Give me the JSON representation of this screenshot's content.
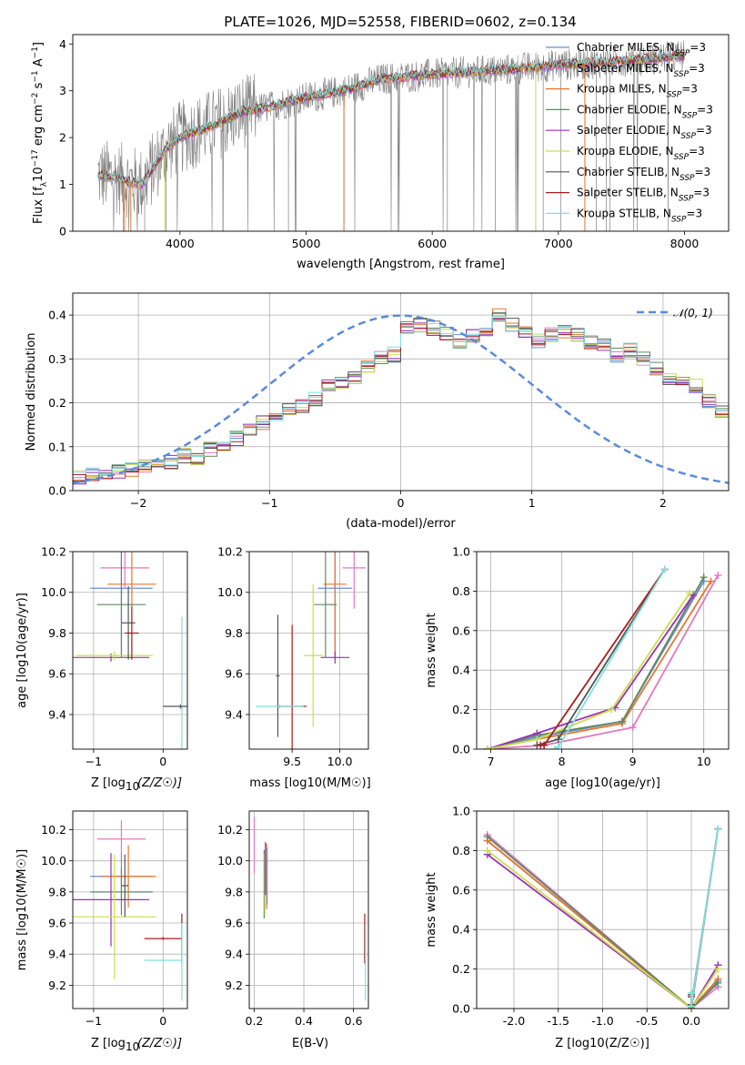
{
  "figure_title": "PLATE=1026, MJD=52558, FIBERID=0602, z=0.134",
  "colors": {
    "Chabrier MILES": "#6b8ed6",
    "Salpeter MILES": "#e377c2",
    "Kroupa MILES": "#e6772e",
    "Chabrier ELODIE": "#5f8a5f",
    "Salpeter ELODIE": "#9b30b8",
    "Kroupa ELODIE": "#c8e04a",
    "Chabrier STELIB": "#555555",
    "Salpeter STELIB": "#a81c1c",
    "Kroupa STELIB": "#7fe0e0"
  },
  "legend_entries": [
    {
      "name": "Chabrier MILES",
      "label": "Chabrier MILES, N",
      "sub": "SSP",
      "tail": "=3"
    },
    {
      "name": "Salpeter MILES",
      "label": "Salpeter MILES, N",
      "sub": "SSP",
      "tail": "=3"
    },
    {
      "name": "Kroupa MILES",
      "label": "Kroupa MILES, N",
      "sub": "SSP",
      "tail": "=3"
    },
    {
      "name": "Chabrier ELODIE",
      "label": "Chabrier ELODIE, N",
      "sub": "SSP",
      "tail": "=3"
    },
    {
      "name": "Salpeter ELODIE",
      "label": "Salpeter ELODIE, N",
      "sub": "SSP",
      "tail": "=3"
    },
    {
      "name": "Kroupa ELODIE",
      "label": "Kroupa ELODIE, N",
      "sub": "SSP",
      "tail": "=3"
    },
    {
      "name": "Chabrier STELIB",
      "label": "Chabrier STELIB, N",
      "sub": "SSP",
      "tail": "=3"
    },
    {
      "name": "Salpeter STELIB",
      "label": "Salpeter STELIB, N",
      "sub": "SSP",
      "tail": "=3"
    },
    {
      "name": "Kroupa STELIB",
      "label": "Kroupa STELIB, N",
      "sub": "SSP",
      "tail": "=3"
    }
  ],
  "chart_data": [
    {
      "id": "spectrum",
      "type": "line",
      "xlabel": "wavelength [Angstrom, rest frame]",
      "ylabel": "Flux [fλ 10−17 erg cm−2 s−1 A−1]",
      "xlim": [
        3150,
        8350
      ],
      "ylim": [
        0,
        4.2
      ],
      "xticks": [
        4000,
        5000,
        6000,
        7000,
        8000
      ],
      "yticks": [
        0,
        1,
        2,
        3,
        4
      ],
      "grid": false,
      "legend_position": "right",
      "continuum": {
        "x": [
          3350,
          3500,
          3600,
          3700,
          3800,
          3900,
          4000,
          4100,
          4300,
          4500,
          4700,
          5000,
          5300,
          5600,
          6000,
          6300,
          6600,
          7000,
          7300,
          7600,
          8000
        ],
        "y": [
          1.2,
          1.15,
          1.05,
          1.0,
          1.4,
          1.8,
          2.0,
          2.1,
          2.3,
          2.55,
          2.65,
          2.85,
          3.0,
          3.25,
          3.35,
          3.4,
          3.45,
          3.55,
          3.6,
          3.65,
          3.75
        ]
      },
      "absorption_lines": [
        3550,
        3720,
        3890,
        4340,
        4860,
        4920,
        5300,
        6120,
        6500,
        6820,
        6880,
        7020,
        7210,
        7300,
        7380,
        7410
      ]
    },
    {
      "id": "residuals",
      "type": "histogram",
      "xlabel": "(data-model)/error",
      "ylabel": "Normed distribution",
      "xlim": [
        -2.5,
        2.5
      ],
      "ylim": [
        0,
        0.45
      ],
      "xticks": [
        -2,
        -1,
        0,
        1,
        2
      ],
      "yticks": [
        0.0,
        0.1,
        0.2,
        0.3,
        0.4
      ],
      "grid": true,
      "legend_position": "top-right",
      "normal_label": "N(0,1)",
      "bin_width": 0.1,
      "bin_start": -2.5,
      "base_counts": [
        0.03,
        0.035,
        0.04,
        0.045,
        0.05,
        0.055,
        0.06,
        0.065,
        0.08,
        0.075,
        0.095,
        0.105,
        0.12,
        0.14,
        0.155,
        0.175,
        0.185,
        0.195,
        0.21,
        0.235,
        0.245,
        0.26,
        0.28,
        0.3,
        0.31,
        0.37,
        0.375,
        0.37,
        0.36,
        0.34,
        0.355,
        0.37,
        0.4,
        0.38,
        0.365,
        0.34,
        0.355,
        0.36,
        0.355,
        0.34,
        0.335,
        0.31,
        0.32,
        0.3,
        0.28,
        0.255,
        0.245,
        0.24,
        0.205,
        0.18
      ]
    },
    {
      "id": "age-vs-Z",
      "type": "scatter",
      "xlabel": "Z [log10(Z/Z☉)]",
      "ylabel": "age  [log10(age/yr)]",
      "xlim": [
        -1.3,
        0.35
      ],
      "ylim": [
        9.23,
        10.2
      ],
      "xticks": [
        -1,
        0
      ],
      "yticks": [
        9.4,
        9.6,
        9.8,
        10.0,
        10.2
      ],
      "grid": true,
      "points": [
        {
          "series": "Chabrier MILES",
          "x": -0.6,
          "y": 10.02,
          "xerr": 0.45,
          "yerr": 0.33
        },
        {
          "series": "Salpeter MILES",
          "x": -0.55,
          "y": 10.12,
          "xerr": 0.35,
          "yerr": 0.1
        },
        {
          "series": "Kroupa MILES",
          "x": -0.45,
          "y": 10.04,
          "xerr": 0.35,
          "yerr": 0.37
        },
        {
          "series": "Chabrier ELODIE",
          "x": -0.6,
          "y": 9.94,
          "xerr": 0.35,
          "yerr": 0.26
        },
        {
          "series": "Salpeter ELODIE",
          "x": -0.75,
          "y": 9.68,
          "xerr": 0.55,
          "yerr": 0.02
        },
        {
          "series": "Kroupa ELODIE",
          "x": -0.7,
          "y": 9.69,
          "xerr": 0.55,
          "yerr": 0.02
        },
        {
          "series": "Chabrier STELIB",
          "x": -0.5,
          "y": 9.85,
          "xerr": 0.1,
          "yerr": 0.18
        },
        {
          "series": "Salpeter STELIB",
          "x": -0.45,
          "y": 9.8,
          "xerr": 0.1,
          "yerr": 0.13
        },
        {
          "series": "Kroupa STELIB",
          "x": 0.27,
          "y": 9.43,
          "xerr": 0.02,
          "yerr": 0.45
        },
        {
          "series": "Chabrier STELIB",
          "x": 0.25,
          "y": 9.44,
          "xerr": 0.25,
          "yerr": 0.01
        }
      ]
    },
    {
      "id": "age-vs-mass",
      "type": "scatter",
      "xlabel": "mass [log10(M/M☉)]",
      "ylabel": "",
      "xlim": [
        9.05,
        10.3
      ],
      "ylim": [
        9.23,
        10.2
      ],
      "xticks": [
        9.5,
        10.0
      ],
      "yticks": [
        9.4,
        9.6,
        9.8,
        10.0,
        10.2
      ],
      "grid": true,
      "points": [
        {
          "series": "Chabrier MILES",
          "x": 9.95,
          "y": 10.02,
          "xerr": 0.18,
          "yerr": 0.33
        },
        {
          "series": "Salpeter MILES",
          "x": 10.15,
          "y": 10.12,
          "xerr": 0.12,
          "yerr": 0.2
        },
        {
          "series": "Kroupa MILES",
          "x": 9.95,
          "y": 10.04,
          "xerr": 0.12,
          "yerr": 0.37
        },
        {
          "series": "Chabrier ELODIE",
          "x": 9.85,
          "y": 9.94,
          "xerr": 0.12,
          "yerr": 0.26
        },
        {
          "series": "Salpeter ELODIE",
          "x": 9.95,
          "y": 9.68,
          "xerr": 0.15,
          "yerr": 0.03
        },
        {
          "series": "Kroupa ELODIE",
          "x": 9.72,
          "y": 9.69,
          "xerr": 0.1,
          "yerr": 0.35
        },
        {
          "series": "Chabrier STELIB",
          "x": 9.35,
          "y": 9.59,
          "xerr": 0.02,
          "yerr": 0.3
        },
        {
          "series": "Salpeter STELIB",
          "x": 9.5,
          "y": 9.44,
          "xerr": 0.15,
          "yerr": 0.4
        },
        {
          "series": "Kroupa STELIB",
          "x": 9.37,
          "y": 9.44,
          "xerr": 0.25,
          "yerr": 0.01
        }
      ]
    },
    {
      "id": "massweight-vs-age",
      "type": "line",
      "xlabel": "age  [log10(age/yr)]",
      "ylabel": "mass weight",
      "xlim": [
        6.8,
        10.35
      ],
      "ylim": [
        0,
        1.0
      ],
      "xticks": [
        7,
        8,
        9,
        10
      ],
      "yticks": [
        0.0,
        0.2,
        0.4,
        0.6,
        0.8,
        1.0
      ],
      "grid": true,
      "series": [
        {
          "name": "Chabrier MILES",
          "x": [
            6.95,
            7.65,
            8.85,
            10.0
          ],
          "y": [
            0.0,
            0.06,
            0.14,
            0.85
          ]
        },
        {
          "name": "Salpeter MILES",
          "x": [
            6.95,
            7.75,
            9.0,
            10.2
          ],
          "y": [
            0.0,
            0.02,
            0.11,
            0.88
          ]
        },
        {
          "name": "Kroupa MILES",
          "x": [
            6.95,
            7.65,
            8.85,
            10.1
          ],
          "y": [
            0.0,
            0.05,
            0.13,
            0.85
          ]
        },
        {
          "name": "Chabrier ELODIE",
          "x": [
            6.95,
            7.65,
            8.85,
            10.0
          ],
          "y": [
            0.0,
            0.07,
            0.14,
            0.87
          ]
        },
        {
          "name": "Salpeter ELODIE",
          "x": [
            6.95,
            7.65,
            8.75,
            9.85
          ],
          "y": [
            0.0,
            0.08,
            0.21,
            0.78
          ]
        },
        {
          "name": "Kroupa ELODIE",
          "x": [
            6.95,
            7.65,
            8.7,
            9.8
          ],
          "y": [
            0.0,
            0.05,
            0.2,
            0.79
          ]
        },
        {
          "name": "Chabrier STELIB",
          "x": [
            7.65,
            7.95,
            9.45
          ],
          "y": [
            0.02,
            0.05,
            0.91
          ]
        },
        {
          "name": "Salpeter STELIB",
          "x": [
            7.7,
            7.75,
            9.45
          ],
          "y": [
            0.02,
            0.02,
            0.91
          ]
        },
        {
          "name": "Kroupa STELIB",
          "x": [
            7.9,
            7.95,
            9.45
          ],
          "y": [
            0.0,
            0.01,
            0.91
          ]
        }
      ]
    },
    {
      "id": "mass-vs-Z",
      "type": "scatter",
      "xlabel": "Z [log10(Z/Z☉)]",
      "ylabel": "mass [log10(M/M☉)]",
      "xlim": [
        -1.3,
        0.35
      ],
      "ylim": [
        9.05,
        10.32
      ],
      "xticks": [
        -1,
        0
      ],
      "yticks": [
        9.2,
        9.4,
        9.6,
        9.8,
        10.0,
        10.2
      ],
      "grid": true,
      "points": [
        {
          "series": "Chabrier MILES",
          "x": -0.6,
          "y": 9.9,
          "xerr": 0.45,
          "yerr": 0.15
        },
        {
          "series": "Salpeter MILES",
          "x": -0.6,
          "y": 10.14,
          "xerr": 0.35,
          "yerr": 0.12
        },
        {
          "series": "Kroupa MILES",
          "x": -0.5,
          "y": 9.9,
          "xerr": 0.4,
          "yerr": 0.2
        },
        {
          "series": "Chabrier ELODIE",
          "x": -0.6,
          "y": 9.8,
          "xerr": 0.45,
          "yerr": 0.15
        },
        {
          "series": "Salpeter ELODIE",
          "x": -0.75,
          "y": 9.75,
          "xerr": 0.55,
          "yerr": 0.3
        },
        {
          "series": "Kroupa ELODIE",
          "x": -0.7,
          "y": 9.64,
          "xerr": 0.6,
          "yerr": 0.4
        },
        {
          "series": "Chabrier STELIB",
          "x": -0.55,
          "y": 9.84,
          "xerr": 0.05,
          "yerr": 0.2
        },
        {
          "series": "Salpeter STELIB",
          "x": 0.0,
          "y": 9.5,
          "xerr": 0.27,
          "yerr": 0.01
        },
        {
          "series": "Kroupa STELIB",
          "x": 0.0,
          "y": 9.36,
          "xerr": 0.27,
          "yerr": 0.01
        },
        {
          "series": "Salpeter STELIB",
          "x": 0.27,
          "y": 9.5,
          "xerr": 0.01,
          "yerr": 0.16
        },
        {
          "series": "Kroupa STELIB",
          "x": 0.27,
          "y": 9.35,
          "xerr": 0.01,
          "yerr": 0.25
        }
      ]
    },
    {
      "id": "mass-vs-EBV",
      "type": "scatter",
      "xlabel": "E(B-V)",
      "ylabel": "",
      "xlim": [
        0.18,
        0.66
      ],
      "ylim": [
        9.05,
        10.32
      ],
      "xticks": [
        0.2,
        0.4,
        0.6
      ],
      "yticks": [
        9.2,
        9.4,
        9.6,
        9.8,
        10.0,
        10.2
      ],
      "grid": true,
      "points": [
        {
          "series": "Salpeter MILES",
          "x": 0.2,
          "y": 10.1,
          "xerr": 0.0,
          "yerr": 0.18
        },
        {
          "series": "Chabrier ELODIE",
          "x": 0.24,
          "y": 9.85,
          "xerr": 0.0,
          "yerr": 0.22
        },
        {
          "series": "Kroupa ELODIE",
          "x": 0.243,
          "y": 9.85,
          "xerr": 0.0,
          "yerr": 0.2
        },
        {
          "series": "Salpeter ELODIE",
          "x": 0.245,
          "y": 9.95,
          "xerr": 0.0,
          "yerr": 0.17
        },
        {
          "series": "Kroupa MILES",
          "x": 0.25,
          "y": 9.9,
          "xerr": 0.0,
          "yerr": 0.21
        },
        {
          "series": "Chabrier MILES",
          "x": 0.252,
          "y": 9.9,
          "xerr": 0.0,
          "yerr": 0.18
        },
        {
          "series": "Salpeter STELIB",
          "x": 0.645,
          "y": 9.5,
          "xerr": 0.0,
          "yerr": 0.16
        },
        {
          "series": "Kroupa STELIB",
          "x": 0.648,
          "y": 9.35,
          "xerr": 0.0,
          "yerr": 0.25
        }
      ]
    },
    {
      "id": "massweight-vs-Z",
      "type": "line",
      "xlabel": "Z [log10(Z/Z☉)]",
      "ylabel": "mass weight",
      "xlim": [
        -2.42,
        0.42
      ],
      "ylim": [
        0,
        1.0
      ],
      "xticks": [
        -2.0,
        -1.5,
        -1.0,
        -0.5,
        0.0
      ],
      "yticks": [
        0.0,
        0.2,
        0.4,
        0.6,
        0.8,
        1.0
      ],
      "grid": true,
      "series": [
        {
          "name": "Chabrier MILES",
          "x": [
            -2.3,
            0.0,
            0.3
          ],
          "y": [
            0.85,
            0.0,
            0.14
          ]
        },
        {
          "name": "Salpeter MILES",
          "x": [
            -2.3,
            0.0,
            0.3
          ],
          "y": [
            0.88,
            0.0,
            0.11
          ]
        },
        {
          "name": "Kroupa MILES",
          "x": [
            -2.3,
            0.0,
            0.3
          ],
          "y": [
            0.85,
            0.0,
            0.15
          ]
        },
        {
          "name": "Chabrier ELODIE",
          "x": [
            -2.3,
            0.0,
            0.3
          ],
          "y": [
            0.87,
            0.0,
            0.13
          ]
        },
        {
          "name": "Salpeter ELODIE",
          "x": [
            -2.3,
            0.0,
            0.3
          ],
          "y": [
            0.78,
            0.0,
            0.22
          ]
        },
        {
          "name": "Kroupa ELODIE",
          "x": [
            -2.3,
            0.0,
            0.3
          ],
          "y": [
            0.8,
            0.0,
            0.2
          ]
        },
        {
          "name": "Chabrier STELIB",
          "x": [
            0.0,
            0.0,
            0.3
          ],
          "y": [
            0.07,
            0.02,
            0.91
          ]
        },
        {
          "name": "Salpeter STELIB",
          "x": [
            0.0,
            0.0,
            0.3
          ],
          "y": [
            0.06,
            0.0,
            0.91
          ]
        },
        {
          "name": "Kroupa STELIB",
          "x": [
            0.0,
            0.0,
            0.3
          ],
          "y": [
            0.08,
            0.01,
            0.91
          ]
        }
      ]
    }
  ]
}
